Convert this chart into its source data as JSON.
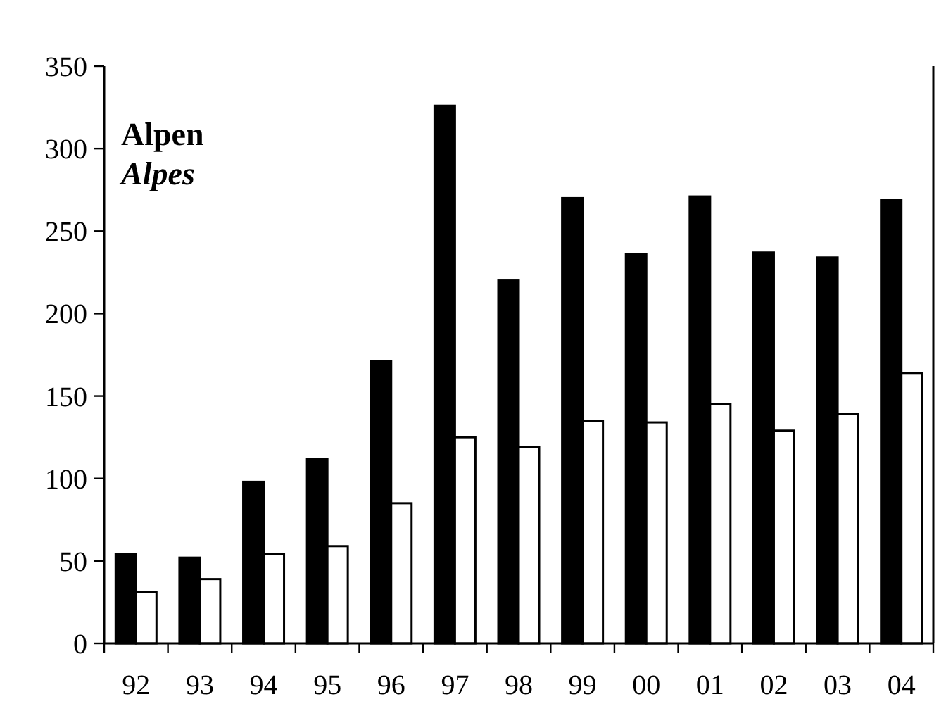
{
  "chart_data": {
    "type": "bar",
    "title": "Alpen",
    "subtitle": "Alpes",
    "categories": [
      "92",
      "93",
      "94",
      "95",
      "96",
      "97",
      "98",
      "99",
      "00",
      "01",
      "02",
      "03",
      "04"
    ],
    "series": [
      {
        "color": "#000000",
        "values": [
          54,
          52,
          98,
          112,
          171,
          326,
          220,
          270,
          236,
          271,
          237,
          234,
          269
        ]
      },
      {
        "color": "#ffffff",
        "values": [
          31,
          39,
          54,
          59,
          85,
          125,
          119,
          135,
          134,
          145,
          129,
          139,
          164
        ]
      }
    ],
    "ylim": [
      0,
      350
    ],
    "yticks": [
      0,
      50,
      100,
      150,
      200,
      250,
      300,
      350
    ]
  }
}
